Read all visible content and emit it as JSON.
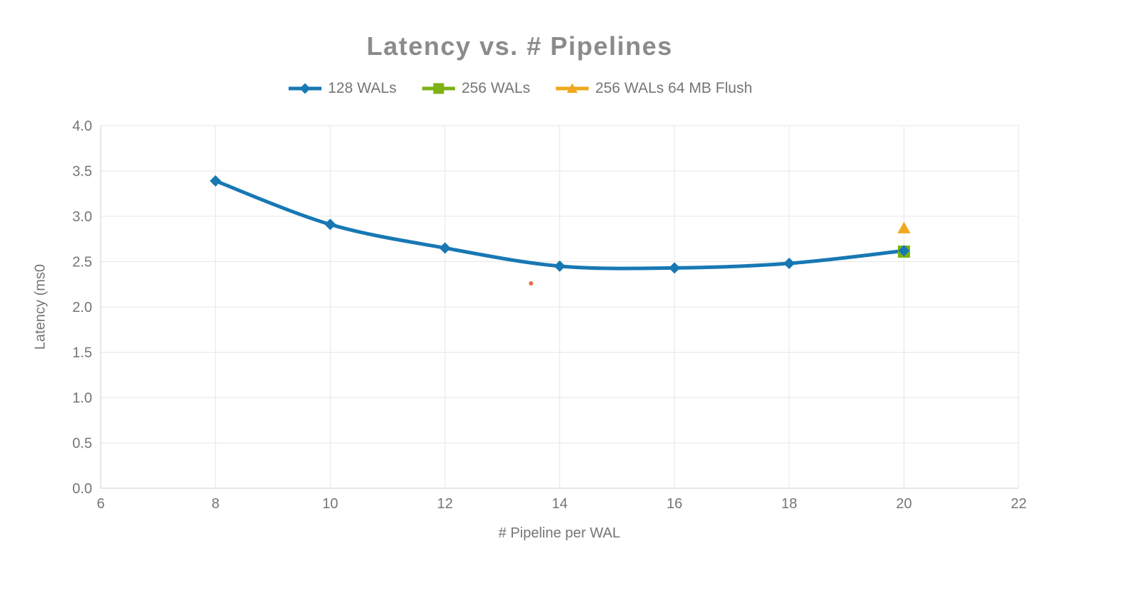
{
  "chart_data": {
    "type": "line",
    "title": "Latency vs. # Pipelines",
    "xlabel": "# Pipeline per WAL",
    "ylabel": "Latency (ms0",
    "xlim": [
      6,
      22
    ],
    "ylim": [
      0,
      4
    ],
    "grid": true,
    "legend_position": "top-center",
    "xticks": [
      {
        "value": 6,
        "label": "6"
      },
      {
        "value": 8,
        "label": "8"
      },
      {
        "value": 10,
        "label": "10"
      },
      {
        "value": 12,
        "label": "12"
      },
      {
        "value": 14,
        "label": "14"
      },
      {
        "value": 16,
        "label": "16"
      },
      {
        "value": 18,
        "label": "18"
      },
      {
        "value": 20,
        "label": "20"
      },
      {
        "value": 22,
        "label": "22"
      }
    ],
    "yticks": [
      {
        "value": 0.0,
        "label": "0.0"
      },
      {
        "value": 0.5,
        "label": "0.5"
      },
      {
        "value": 1.0,
        "label": "1.0"
      },
      {
        "value": 1.5,
        "label": "1.5"
      },
      {
        "value": 2.0,
        "label": "2.0"
      },
      {
        "value": 2.5,
        "label": "2.5"
      },
      {
        "value": 3.0,
        "label": "3.0"
      },
      {
        "value": 3.5,
        "label": "3.5"
      },
      {
        "value": 4.0,
        "label": "4.0"
      }
    ],
    "series": [
      {
        "name": "128 WALs",
        "color": "#1878B4",
        "marker": "diamond",
        "line": true,
        "smooth": true,
        "points": [
          [
            8,
            3.39
          ],
          [
            10,
            2.91
          ],
          [
            12,
            2.65
          ],
          [
            14,
            2.45
          ],
          [
            16,
            2.43
          ],
          [
            18,
            2.48
          ],
          [
            20,
            2.62
          ]
        ]
      },
      {
        "name": "256 WALs",
        "color": "#7CB215",
        "marker": "square",
        "line": false,
        "smooth": false,
        "points": [
          [
            20,
            2.61
          ]
        ]
      },
      {
        "name": "256 WALs 64 MB Flush",
        "color": "#F0A81E",
        "marker": "triangle",
        "line": false,
        "smooth": false,
        "points": [
          [
            20,
            2.87
          ]
        ]
      }
    ],
    "stray_point": {
      "x": 13.5,
      "y": 2.26,
      "color": "#EE6A4B"
    }
  },
  "style_colors": {
    "grid": "#E7E7E7",
    "axis": "#CFCFCF",
    "tick_text": "#757575",
    "title_text": "#8B8B8B"
  }
}
